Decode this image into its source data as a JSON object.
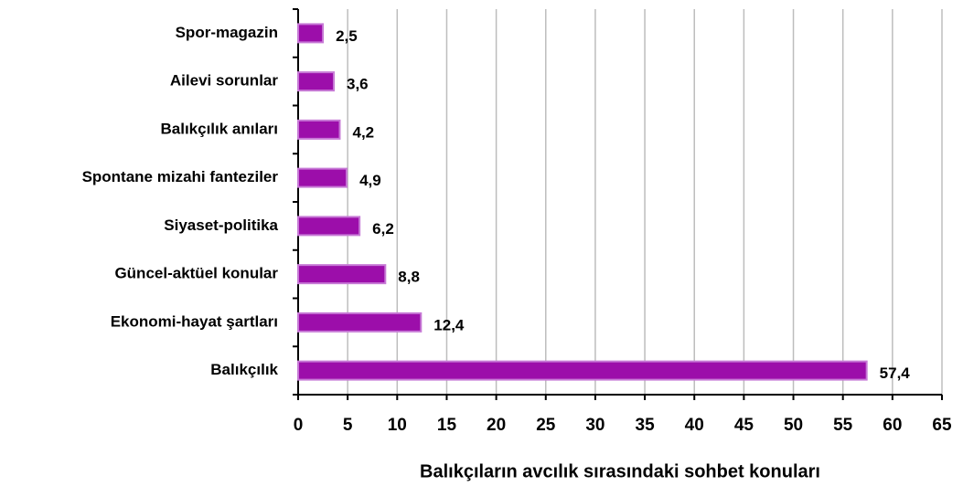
{
  "chart_data": {
    "type": "bar",
    "orientation": "horizontal",
    "x_label": "Balıkçıların avcılık sırasındaki sohbet konuları",
    "categories": [
      "Spor-magazin",
      "Ailevi sorunlar",
      "Balıkçılık anıları",
      "Spontane mizahi fanteziler",
      "Siyaset-politika",
      "Güncel-aktüel konular",
      "Ekonomi-hayat şartları",
      "Balıkçılık"
    ],
    "values": [
      2.5,
      3.6,
      4.2,
      4.9,
      6.2,
      8.8,
      12.4,
      57.4
    ],
    "value_labels": [
      "2,5",
      "3,6",
      "4,2",
      "4,9",
      "6,2",
      "8,8",
      "12,4",
      "57,4"
    ],
    "color": "#9c0eaa",
    "edge_color": "#c77ad6",
    "xlim": [
      0,
      65
    ],
    "xticks": [
      0,
      5,
      10,
      15,
      20,
      25,
      30,
      35,
      40,
      45,
      50,
      55,
      60,
      65
    ],
    "grid": true
  }
}
